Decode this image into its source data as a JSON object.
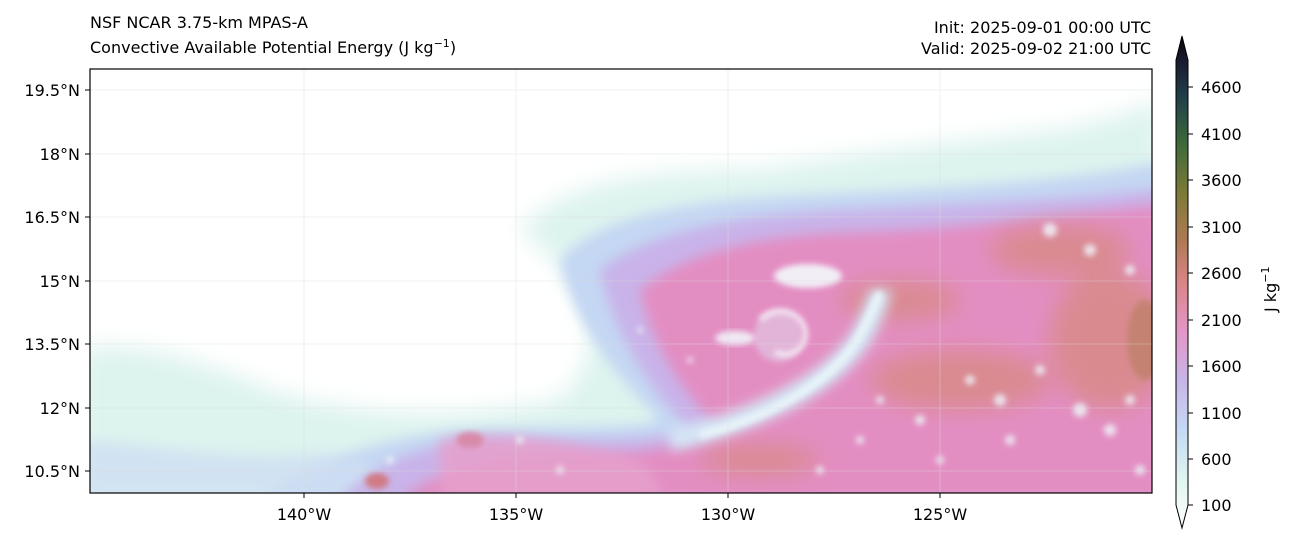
{
  "header": {
    "model_title": "NSF NCAR 3.75-km MPAS-A",
    "field_title": "Convective Available Potential Energy (J kg",
    "field_title_sup": "−1",
    "field_title_end": ")",
    "init_label": "Init: 2025-09-01 00:00 UTC",
    "valid_label": "Valid: 2025-09-02 21:00 UTC"
  },
  "map": {
    "lat_ticks": [
      "19.5°N",
      "18°N",
      "16.5°N",
      "15°N",
      "13.5°N",
      "12°N",
      "10.5°N"
    ],
    "lon_ticks": [
      "140°W",
      "135°W",
      "130°W",
      "125°W"
    ]
  },
  "colorbar": {
    "ticks": [
      "4600",
      "4100",
      "3600",
      "3100",
      "2600",
      "2100",
      "1600",
      "1100",
      "600",
      "100"
    ],
    "label": "J kg",
    "label_sup": "−1"
  },
  "colors": {
    "low": "#ffffff",
    "teal": "#d9f3ee",
    "light_blue": "#bfd3f2",
    "lavender": "#c7b2e8",
    "pink": "#e58cc0",
    "salmon": "#d98a8a",
    "olive": "#8a8a3c",
    "green": "#2f6a3a",
    "navy": "#1c2a44",
    "high": "#0a0a0a"
  }
}
